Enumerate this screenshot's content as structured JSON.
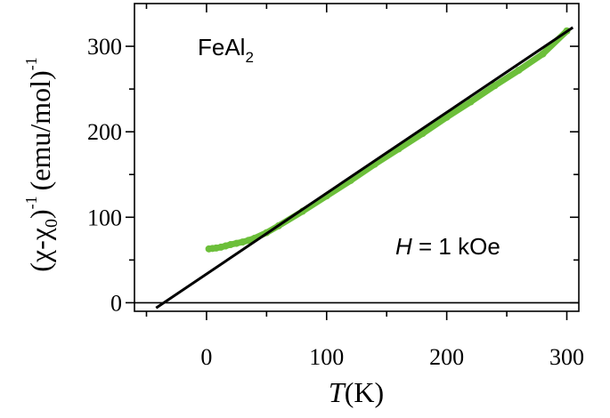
{
  "chart_data": {
    "type": "scatter",
    "title": "",
    "xlabel_italic": "T",
    "xlabel_rest": "(K)",
    "ylabel_main": "(χ-χ",
    "ylabel_sub": "0",
    "ylabel_close": ")",
    "ylabel_sup1": "-1",
    "ylabel_unit": "(emu/mol)",
    "ylabel_sup2": "-1",
    "xlim": [
      -60,
      310
    ],
    "ylim": [
      -10,
      350
    ],
    "x_ticks": [
      0,
      100,
      200,
      300
    ],
    "x_minor_ticks": [
      -50,
      50,
      150,
      250
    ],
    "y_ticks": [
      0,
      100,
      200,
      300
    ],
    "y_minor_ticks": [
      50,
      150,
      250
    ],
    "grid": false,
    "zero_line": 0,
    "annotations": {
      "compound_main": "FeAl",
      "compound_sub": "2",
      "field_italic": "H",
      "field_rest": " = 1 kOe"
    },
    "series": [
      {
        "kind": "data",
        "color": "#6cbf3a",
        "x": [
          2,
          5,
          8,
          12,
          16,
          20,
          25,
          30,
          35,
          40,
          50,
          60,
          80,
          100,
          120,
          140,
          160,
          180,
          200,
          220,
          240,
          260,
          280,
          300
        ],
        "y": [
          63,
          63.5,
          64,
          65,
          66.5,
          68,
          69.5,
          71,
          73,
          75.5,
          82,
          90,
          107,
          125,
          143,
          162,
          180,
          198,
          217,
          235,
          254,
          272,
          291,
          318
        ]
      },
      {
        "kind": "fit",
        "color": "#000000",
        "x": [
          -42,
          305
        ],
        "y": [
          -6,
          322
        ]
      }
    ]
  }
}
